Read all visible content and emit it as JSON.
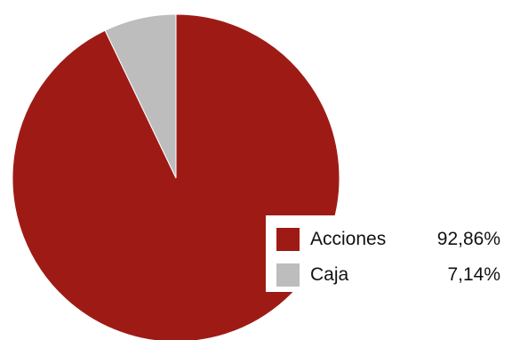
{
  "chart_data": {
    "type": "pie",
    "title": "",
    "slices": [
      {
        "label": "Acciones",
        "value": 92.86,
        "value_text": "92,86%",
        "color": "#9e1b15"
      },
      {
        "label": "Caja",
        "value": 7.14,
        "value_text": "7,14%",
        "color": "#bdbdbd"
      }
    ],
    "legend_position": "bottom-right"
  }
}
